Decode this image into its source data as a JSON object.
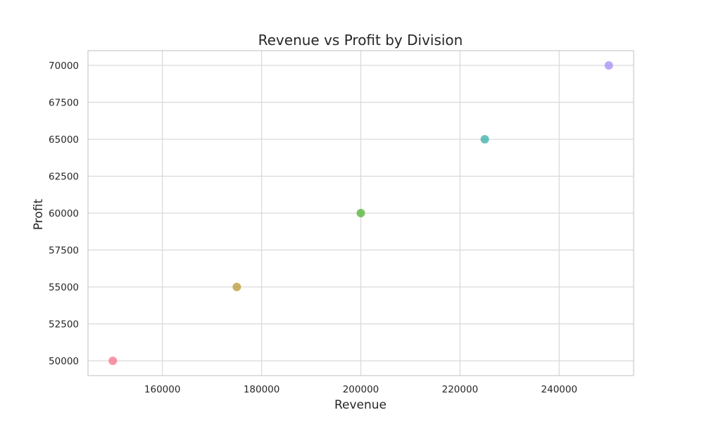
{
  "chart_data": {
    "type": "scatter",
    "title": "Revenue vs Profit by Division",
    "xlabel": "Revenue",
    "ylabel": "Profit",
    "xlim": [
      145000,
      255000
    ],
    "ylim": [
      49000,
      71000
    ],
    "xticks": [
      160000,
      180000,
      200000,
      220000,
      240000
    ],
    "yticks": [
      50000,
      52500,
      55000,
      57500,
      60000,
      62500,
      65000,
      67500,
      70000
    ],
    "grid": true,
    "points": [
      {
        "x": 150000,
        "y": 50000,
        "color": "#f77189"
      },
      {
        "x": 175000,
        "y": 55000,
        "color": "#bb9832"
      },
      {
        "x": 200000,
        "y": 60000,
        "color": "#50b131"
      },
      {
        "x": 225000,
        "y": 65000,
        "color": "#36ada4"
      },
      {
        "x": 250000,
        "y": 70000,
        "color": "#a48cf4"
      }
    ],
    "colors": {
      "grid": "#d9d9d9",
      "frame": "#cccccc",
      "text": "#262626"
    }
  }
}
